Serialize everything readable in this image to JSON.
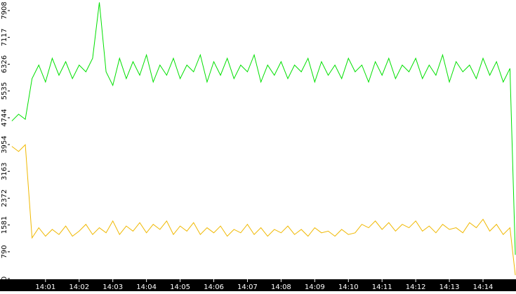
{
  "chart_data": {
    "type": "line",
    "x": [
      0,
      0.2,
      0.4,
      0.6,
      0.8,
      1,
      1.2,
      1.4,
      1.6,
      1.8,
      2,
      2.2,
      2.4,
      2.6,
      2.8,
      3,
      3.2,
      3.4,
      3.6,
      3.8,
      4,
      4.2,
      4.4,
      4.6,
      4.8,
      5,
      5.2,
      5.4,
      5.6,
      5.8,
      6,
      6.2,
      6.4,
      6.6,
      6.8,
      7,
      7.2,
      7.4,
      7.6,
      7.8,
      8,
      8.2,
      8.4,
      8.6,
      8.8,
      9,
      9.2,
      9.4,
      9.6,
      9.8,
      10,
      10.2,
      10.4,
      10.6,
      10.8,
      11,
      11.2,
      11.4,
      11.6,
      11.8,
      12,
      12.2,
      12.4,
      12.6,
      12.8,
      13,
      13.2,
      13.4,
      13.6,
      13.8,
      14,
      14.2,
      14.4,
      14.6,
      14.8,
      14.96
    ],
    "series": [
      {
        "color": "#00e000",
        "values": [
          4650,
          4850,
          4700,
          5900,
          6300,
          5800,
          6500,
          6000,
          6400,
          5900,
          6300,
          6100,
          6500,
          8150,
          6100,
          5700,
          6500,
          5900,
          6400,
          6000,
          6600,
          5800,
          6300,
          6000,
          6500,
          5900,
          6300,
          6100,
          6600,
          5800,
          6400,
          6000,
          6500,
          5900,
          6300,
          6100,
          6600,
          5800,
          6300,
          6000,
          6400,
          5900,
          6300,
          6100,
          6500,
          5800,
          6400,
          6000,
          6300,
          5900,
          6500,
          6100,
          6300,
          5800,
          6400,
          6000,
          6500,
          5900,
          6300,
          6100,
          6500,
          5900,
          6300,
          6000,
          6600,
          5800,
          6400,
          6100,
          6300,
          5900,
          6500,
          6000,
          6400,
          5800,
          6200,
          700
        ]
      },
      {
        "color": "#f0b800",
        "values": [
          3900,
          3750,
          3950,
          1200,
          1500,
          1250,
          1450,
          1300,
          1550,
          1250,
          1400,
          1600,
          1300,
          1500,
          1350,
          1700,
          1300,
          1550,
          1400,
          1650,
          1350,
          1600,
          1450,
          1700,
          1300,
          1550,
          1400,
          1650,
          1300,
          1500,
          1350,
          1550,
          1250,
          1450,
          1350,
          1600,
          1300,
          1500,
          1250,
          1450,
          1350,
          1550,
          1300,
          1450,
          1250,
          1500,
          1350,
          1400,
          1250,
          1450,
          1300,
          1350,
          1600,
          1500,
          1700,
          1450,
          1650,
          1400,
          1600,
          1500,
          1700,
          1400,
          1550,
          1350,
          1600,
          1450,
          1500,
          1350,
          1650,
          1500,
          1750,
          1400,
          1600,
          1300,
          1500,
          100
        ]
      }
    ],
    "xlim": [
      -0.06,
      14.98
    ],
    "xticks": [
      {
        "value": 1,
        "label": "14:01"
      },
      {
        "value": 2,
        "label": "14:02"
      },
      {
        "value": 3,
        "label": "14:03"
      },
      {
        "value": 4,
        "label": "14:04"
      },
      {
        "value": 5,
        "label": "14:05"
      },
      {
        "value": 6,
        "label": "14:06"
      },
      {
        "value": 7,
        "label": "14:07"
      },
      {
        "value": 8,
        "label": "14:08"
      },
      {
        "value": 9,
        "label": "14:09"
      },
      {
        "value": 10,
        "label": "14:10"
      },
      {
        "value": 11,
        "label": "14:11"
      },
      {
        "value": 12,
        "label": "14:12"
      },
      {
        "value": 13,
        "label": "14:13"
      },
      {
        "value": 14,
        "label": "14:14"
      }
    ],
    "ylim": [
      0,
      8220
    ],
    "yticks": [
      0,
      790,
      1581,
      2372,
      3163,
      3954,
      4744,
      5535,
      6326,
      7117,
      7908
    ]
  }
}
